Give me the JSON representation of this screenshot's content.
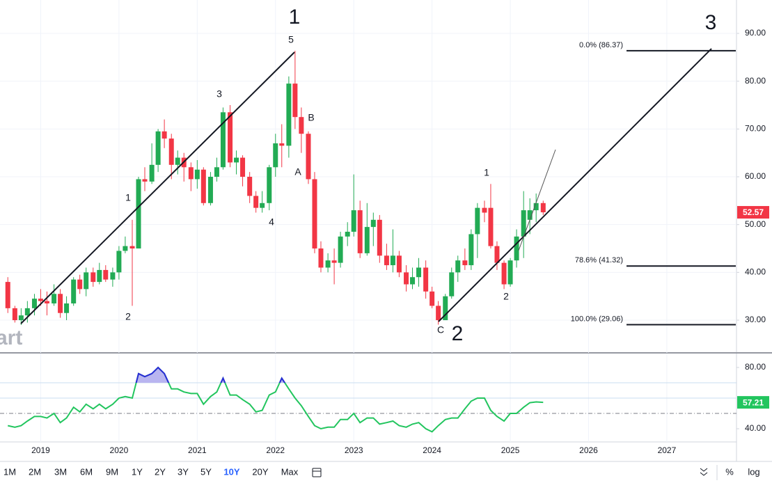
{
  "toolbar": {
    "ranges": [
      "1M",
      "2M",
      "3M",
      "6M",
      "9M",
      "1Y",
      "2Y",
      "3Y",
      "5Y",
      "10Y",
      "20Y",
      "Max"
    ],
    "active": "10Y",
    "percent": "%",
    "log": "log"
  },
  "chart_data": [
    {
      "type": "candlestick",
      "watermark": "art",
      "up_color": "#22ab54",
      "down_color": "#f23645",
      "grid": true,
      "x": [
        2018.58,
        2018.67,
        2018.75,
        2018.83,
        2018.92,
        2019,
        2019.08,
        2019.17,
        2019.25,
        2019.33,
        2019.42,
        2019.5,
        2019.58,
        2019.67,
        2019.75,
        2019.83,
        2019.92,
        2020,
        2020.08,
        2020.17,
        2020.25,
        2020.33,
        2020.42,
        2020.5,
        2020.58,
        2020.67,
        2020.75,
        2020.83,
        2020.92,
        2021,
        2021.08,
        2021.17,
        2021.25,
        2021.33,
        2021.42,
        2021.5,
        2021.58,
        2021.67,
        2021.75,
        2021.83,
        2021.92,
        2022,
        2022.08,
        2022.17,
        2022.25,
        2022.33,
        2022.42,
        2022.5,
        2022.58,
        2022.67,
        2022.75,
        2022.83,
        2022.92,
        2023,
        2023.08,
        2023.17,
        2023.25,
        2023.33,
        2023.42,
        2023.5,
        2023.58,
        2023.67,
        2023.75,
        2023.83,
        2023.92,
        2024,
        2024.08,
        2024.17,
        2024.25,
        2024.33,
        2024.42,
        2024.5,
        2024.58,
        2024.67,
        2024.75,
        2024.83,
        2024.92,
        2025,
        2025.08,
        2025.17,
        2025.25,
        2025.33,
        2025.42
      ],
      "open": [
        38,
        32.5,
        30,
        31,
        32.5,
        34.5,
        34,
        33.5,
        35.5,
        31.5,
        33.5,
        38.5,
        36.5,
        40,
        38,
        40.5,
        38.5,
        40,
        44.5,
        45.5,
        45,
        59.5,
        59,
        62.5,
        69.5,
        68,
        62.5,
        64,
        62,
        59.5,
        61.5,
        54.5,
        60,
        62,
        73.5,
        63,
        64,
        60,
        56,
        53.5,
        54.5,
        62,
        67,
        66.5,
        79.5,
        72.5,
        69,
        59.5,
        45,
        41,
        42.5,
        42,
        47.5,
        48.5,
        53,
        44,
        49.5,
        51,
        43.5,
        41.5,
        43.5,
        40,
        37.5,
        39,
        41,
        36,
        33,
        30,
        35,
        40,
        42.5,
        41.5,
        48,
        53.5,
        53.5,
        45.5,
        42,
        37.5,
        42.5,
        47.5,
        51,
        53,
        54.5
      ],
      "high": [
        39,
        33,
        32.5,
        34,
        35.5,
        36.5,
        36,
        37.5,
        36.5,
        35,
        39,
        39.5,
        41,
        41,
        42,
        41.5,
        41,
        45.5,
        47.5,
        51,
        60,
        62,
        67,
        70,
        72,
        69,
        65.5,
        65,
        63,
        63.5,
        62,
        61,
        64,
        74.5,
        75,
        65.5,
        64.5,
        61,
        57,
        57,
        62.5,
        69,
        71,
        81,
        86.37,
        74.5,
        69.5,
        61,
        46.5,
        44,
        45,
        48.5,
        50.5,
        60.5,
        55,
        54.5,
        52.5,
        52,
        46,
        49,
        44.5,
        41.5,
        41,
        43,
        42.5,
        37,
        34,
        35.5,
        41,
        43.5,
        45,
        49,
        54.5,
        55,
        58.5,
        46.5,
        42.5,
        43,
        49,
        57,
        55.5,
        56.5,
        55
      ],
      "low": [
        31.5,
        29.5,
        29,
        29.5,
        31,
        33,
        31,
        33,
        30.5,
        30,
        33,
        35.5,
        35,
        37,
        37.5,
        38,
        37,
        38.5,
        44,
        33,
        45,
        57,
        58.5,
        61,
        66,
        59.5,
        60.5,
        59,
        57,
        57.5,
        54,
        54,
        59,
        61.5,
        62,
        60.5,
        58,
        54.5,
        52.5,
        52.5,
        53,
        60,
        62,
        64,
        70,
        65,
        58.5,
        44,
        40,
        40,
        37.5,
        41,
        45.5,
        47.5,
        43,
        43.5,
        45.5,
        42,
        40.5,
        40,
        39,
        36,
        36.5,
        37,
        34.5,
        32.5,
        29.06,
        30,
        34.5,
        38,
        40.5,
        40.5,
        43,
        50.5,
        45,
        40.5,
        36.5,
        37,
        41,
        43,
        48,
        50.5,
        52
      ],
      "close": [
        32.5,
        30,
        31,
        32.5,
        34.5,
        34,
        33.5,
        35.5,
        31.5,
        33.5,
        38.5,
        36.5,
        40,
        38,
        40.5,
        38.5,
        40,
        44.5,
        45.5,
        45,
        59.5,
        59,
        62.5,
        69.5,
        68,
        62.5,
        64,
        62,
        59.5,
        61.5,
        54.5,
        60,
        62,
        73.5,
        63,
        64,
        60,
        56,
        53.5,
        54.5,
        62,
        67,
        66.5,
        79.5,
        72.5,
        69,
        59.5,
        45,
        41,
        42.5,
        42,
        47.5,
        48.5,
        53,
        44,
        49.5,
        51,
        43.5,
        41.5,
        43.5,
        40,
        37.5,
        39,
        41,
        36,
        33,
        30,
        35,
        40,
        42.5,
        41.5,
        48,
        53.5,
        52.5,
        45.5,
        42,
        37.5,
        42.5,
        47.5,
        53,
        53,
        54.5,
        52.57
      ],
      "xlim": [
        2018.48,
        2027.89
      ],
      "xticks": [
        2019,
        2020,
        2021,
        2022,
        2023,
        2024,
        2025,
        2026,
        2027
      ],
      "ylim": [
        23.16,
        96.99
      ],
      "yticks": [
        {
          "value": 30,
          "label": "30.00"
        },
        {
          "value": 40,
          "label": "40.00"
        },
        {
          "value": 50,
          "label": "50.00"
        },
        {
          "value": 60,
          "label": "60.00"
        },
        {
          "value": 70,
          "label": "70.00"
        },
        {
          "value": 80,
          "label": "80.00"
        },
        {
          "value": 90,
          "label": "90.00"
        }
      ],
      "annotations": [
        "1",
        "5",
        "3",
        "B",
        "A",
        "1",
        "4",
        "2",
        "1",
        "2",
        "C",
        "2",
        "3"
      ],
      "fib_levels": [
        {
          "label": "0.0% (86.37)",
          "value": 86.37
        },
        {
          "label": "78.6% (41.32)",
          "value": 41.32
        },
        {
          "label": "100.0% (29.06)",
          "value": 29.06
        }
      ]
    },
    {
      "type": "line",
      "color": "#22c55e",
      "overbought_color": "#2a2ad8",
      "overbought_fill": "#b9b5f0",
      "x": [
        2018.58,
        2018.67,
        2018.75,
        2018.83,
        2018.92,
        2019,
        2019.08,
        2019.17,
        2019.25,
        2019.33,
        2019.42,
        2019.5,
        2019.58,
        2019.67,
        2019.75,
        2019.83,
        2019.92,
        2020,
        2020.08,
        2020.17,
        2020.25,
        2020.33,
        2020.42,
        2020.5,
        2020.58,
        2020.67,
        2020.75,
        2020.83,
        2020.92,
        2021,
        2021.08,
        2021.17,
        2021.25,
        2021.33,
        2021.42,
        2021.5,
        2021.58,
        2021.67,
        2021.75,
        2021.83,
        2021.92,
        2022,
        2022.08,
        2022.17,
        2022.25,
        2022.33,
        2022.42,
        2022.5,
        2022.58,
        2022.67,
        2022.75,
        2022.83,
        2022.92,
        2023,
        2023.08,
        2023.17,
        2023.25,
        2023.33,
        2023.42,
        2023.5,
        2023.58,
        2023.67,
        2023.75,
        2023.83,
        2023.92,
        2024,
        2024.08,
        2024.17,
        2024.25,
        2024.33,
        2024.42,
        2024.5,
        2024.58,
        2024.67,
        2024.75,
        2024.83,
        2024.92,
        2025,
        2025.08,
        2025.17,
        2025.25,
        2025.33,
        2025.42
      ],
      "values": [
        42,
        41,
        42,
        45,
        48,
        48,
        47,
        50,
        44,
        47,
        54,
        51,
        56,
        53,
        56,
        53,
        56,
        60,
        61,
        60,
        76,
        74,
        76,
        80,
        76,
        66,
        66,
        64,
        63,
        63,
        56,
        61,
        64,
        73,
        62,
        62,
        59,
        56,
        51,
        52,
        62,
        64,
        73,
        66,
        60,
        55,
        48,
        42,
        40,
        41,
        41,
        46,
        46,
        50,
        44,
        47,
        47,
        43,
        44,
        45,
        42,
        41,
        43,
        44,
        40,
        38,
        42,
        46,
        47,
        47,
        53,
        58,
        60,
        60,
        52,
        48,
        45,
        50,
        50,
        54,
        57,
        57.5,
        57.21
      ],
      "xlim": [
        2018.48,
        2027.89
      ],
      "xticks": [
        2019,
        2020,
        2021,
        2022,
        2023,
        2024,
        2025,
        2026,
        2027
      ],
      "ylim": [
        31.36,
        89.09
      ],
      "yticks": [
        {
          "value": 40,
          "label": "40.00"
        },
        {
          "value": 80,
          "label": "80.00"
        }
      ],
      "levels": [
        70,
        60
      ],
      "midline": 50
    }
  ]
}
